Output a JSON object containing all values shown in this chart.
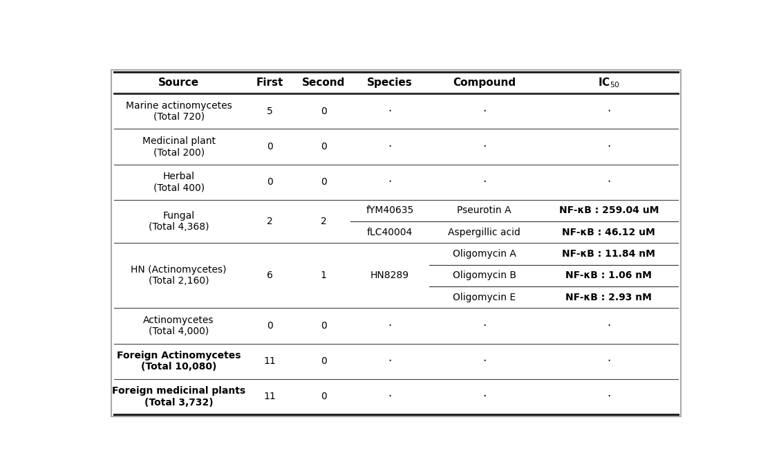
{
  "background_color": "#ffffff",
  "border_color": "#000000",
  "outer_box_color": "#d0d0d0",
  "headers": [
    "Source",
    "First",
    "Second",
    "Species",
    "Compound",
    "IC$_{50}$"
  ],
  "col_props": [
    0.205,
    0.085,
    0.085,
    0.125,
    0.175,
    0.22
  ],
  "simple_rows": [
    {
      "source": "Marine actinomycetes\n(Total 720)",
      "first": "5",
      "second": "0",
      "bold_src": false
    },
    {
      "source": "Medicinal plant\n(Total 200)",
      "first": "0",
      "second": "0",
      "bold_src": false
    },
    {
      "source": "Herbal\n(Total 400)",
      "first": "0",
      "second": "0",
      "bold_src": false
    }
  ],
  "fungal": {
    "source": "Fungal\n(Total 4,368)",
    "first": "2",
    "second": "2",
    "bold_src": false,
    "sub_rows": [
      {
        "species": "fYM40635",
        "compound": "Pseurotin A",
        "ic50": "NF-κB : 259.04 uM"
      },
      {
        "species": "fLC40004",
        "compound": "Aspergillic acid",
        "ic50": "NF-κB : 46.12 uM"
      }
    ]
  },
  "hn": {
    "source": "HN (Actinomycetes)\n(Total 2,160)",
    "first": "6",
    "second": "1",
    "bold_src": false,
    "species": "HN8289",
    "sub_rows": [
      {
        "compound": "Oligomycin A",
        "ic50": "NF-κB : 11.84 nM"
      },
      {
        "compound": "Oligomycin B",
        "ic50": "NF-κB : 1.06 nM"
      },
      {
        "compound": "Oligomycin E",
        "ic50": "NF-κB : 2.93 nM"
      }
    ]
  },
  "late_rows": [
    {
      "source": "Actinomycetes\n(Total 4,000)",
      "first": "0",
      "second": "0",
      "bold_src": false
    },
    {
      "source": "Foreign Actinomycetes\n(Total 10,080)",
      "first": "11",
      "second": "0",
      "bold_src": true
    },
    {
      "source": "Foreign medicinal plants\n(Total 3,732)",
      "first": "11",
      "second": "0",
      "bold_src": true
    }
  ],
  "header_fontsize": 11,
  "cell_fontsize": 10,
  "ic50_fontsize": 10,
  "empty_char": "·"
}
